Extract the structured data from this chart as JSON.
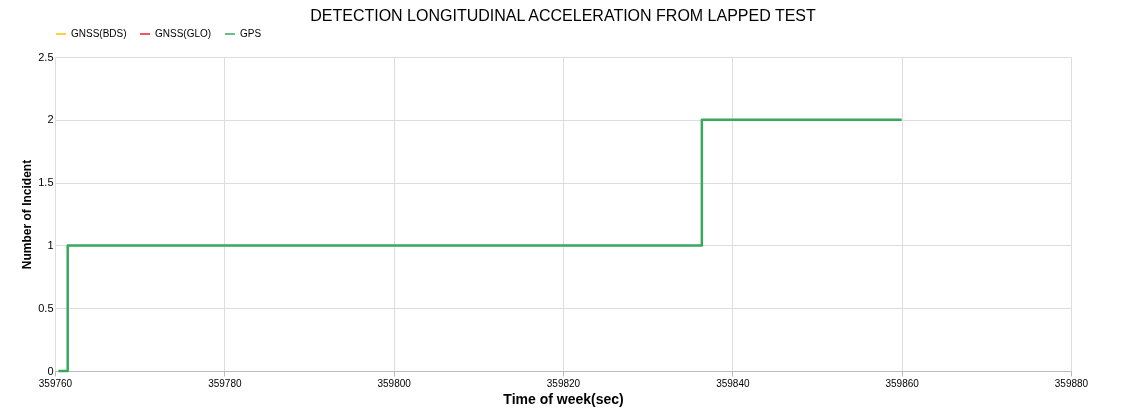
{
  "chart_data": {
    "type": "step",
    "title": "DETECTION LONGITUDINAL ACCELERATION FROM LAPPED TEST",
    "xlabel": "Time of week(sec)",
    "ylabel": "Number of Incident",
    "x": [
      359760.4,
      359761.5,
      359836.4,
      359860
    ],
    "series": [
      {
        "name": "GNSS(BDS)",
        "color": "#ffc000",
        "values": [
          null,
          null,
          null,
          null
        ]
      },
      {
        "name": "GNSS(GLO)",
        "color": "#e8242a",
        "values": [
          null,
          null,
          null,
          null
        ]
      },
      {
        "name": "GPS",
        "color": "#3aa85c",
        "values": [
          0,
          1,
          2,
          2
        ]
      }
    ],
    "xlim": [
      359760,
      359880
    ],
    "xticks": [
      359760,
      359780,
      359800,
      359820,
      359840,
      359860,
      359880
    ],
    "ylim": [
      0,
      2.5
    ],
    "yticks": [
      0,
      0.5,
      1,
      1.5,
      2,
      2.5
    ],
    "grid": true,
    "legend": "top",
    "line_style": "solid",
    "marker": "none"
  }
}
